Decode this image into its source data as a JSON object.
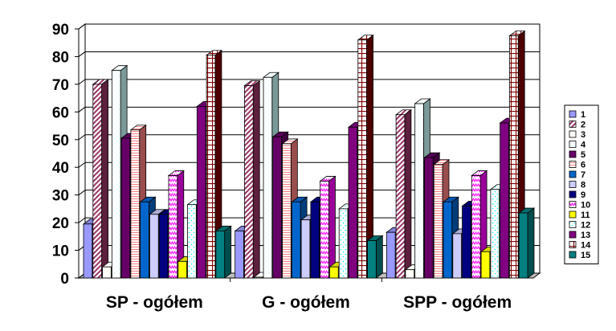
{
  "chart_data": {
    "type": "bar",
    "categories": [
      "SP - ogółem",
      "G - ogółem",
      "SPP - ogółem"
    ],
    "ylim": [
      0,
      90
    ],
    "yticks": [
      0,
      10,
      20,
      30,
      40,
      50,
      60,
      70,
      80,
      90
    ],
    "grid": true,
    "three_d": true,
    "legend_position": "right",
    "series": [
      {
        "name": "1",
        "values": [
          19.5,
          17.0,
          16.5
        ],
        "color": "#9999ff",
        "pattern": "solid"
      },
      {
        "name": "2",
        "values": [
          70.0,
          69.5,
          59.0
        ],
        "color": "#993366",
        "pattern": "diag"
      },
      {
        "name": "3",
        "values": [
          4.0,
          0.3,
          3.0
        ],
        "color": "#ffffcc",
        "pattern": "dots"
      },
      {
        "name": "4",
        "values": [
          75.0,
          72.5,
          63.0
        ],
        "color": "#ccffff",
        "pattern": "dots"
      },
      {
        "name": "5",
        "values": [
          50.5,
          51.0,
          43.5
        ],
        "color": "#660066",
        "pattern": "solid"
      },
      {
        "name": "6",
        "values": [
          53.5,
          48.5,
          41.0
        ],
        "color": "#ff8080",
        "pattern": "hlines"
      },
      {
        "name": "7",
        "values": [
          27.5,
          27.5,
          27.5
        ],
        "color": "#0066cc",
        "pattern": "solid"
      },
      {
        "name": "8",
        "values": [
          23.0,
          21.0,
          16.0
        ],
        "color": "#ccccff",
        "pattern": "solid"
      },
      {
        "name": "9",
        "values": [
          23.0,
          27.5,
          26.0
        ],
        "color": "#000080",
        "pattern": "solid"
      },
      {
        "name": "10",
        "values": [
          37.0,
          35.0,
          37.0
        ],
        "color": "#ff00ff",
        "pattern": "zigzag"
      },
      {
        "name": "11",
        "values": [
          6.0,
          4.0,
          9.5
        ],
        "color": "#ffff00",
        "pattern": "solid"
      },
      {
        "name": "12",
        "values": [
          26.5,
          25.0,
          32.0
        ],
        "color": "#00ffff",
        "pattern": "dots"
      },
      {
        "name": "13",
        "values": [
          62.0,
          54.5,
          56.0
        ],
        "color": "#800080",
        "pattern": "solid"
      },
      {
        "name": "14",
        "values": [
          80.5,
          86.0,
          87.5
        ],
        "color": "#800000",
        "pattern": "grid"
      },
      {
        "name": "15",
        "values": [
          17.0,
          13.5,
          23.5
        ],
        "color": "#008080",
        "pattern": "solid"
      }
    ]
  }
}
